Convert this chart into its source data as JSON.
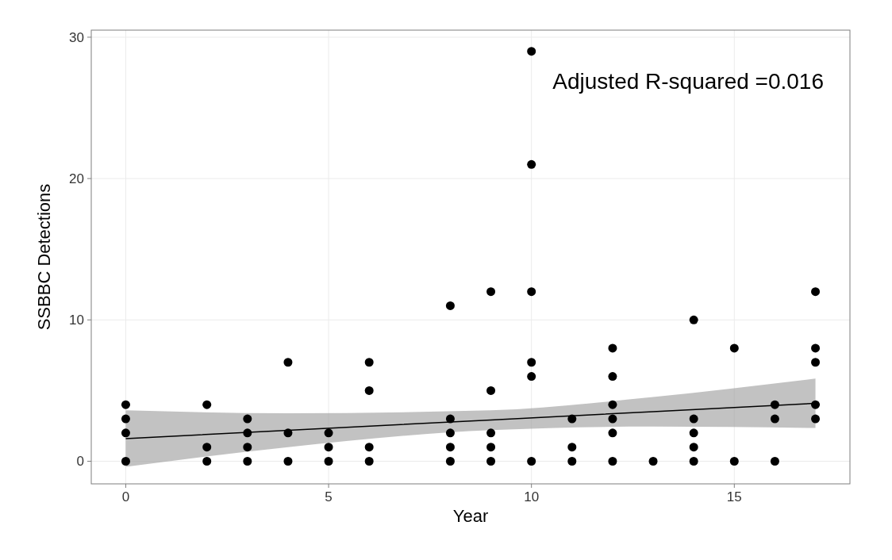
{
  "chart_data": {
    "type": "scatter",
    "xlabel": "Year",
    "ylabel": "SSBBC Detections",
    "annotations": [
      "Adjusted R-squared =0.016"
    ],
    "xlim": [
      -0.85,
      17.85
    ],
    "xticks": [
      0,
      5,
      10,
      15
    ],
    "ylim": [
      -1.6,
      30.5
    ],
    "yticks": [
      0,
      10,
      20,
      30
    ],
    "grid": true,
    "series": [
      {
        "marker": "circle",
        "color": "#000000",
        "x": [
          0,
          0,
          0,
          0,
          2,
          2,
          2,
          3,
          3,
          3,
          3,
          4,
          4,
          4,
          5,
          5,
          5,
          6,
          6,
          6,
          6,
          8,
          8,
          8,
          8,
          8,
          9,
          9,
          9,
          9,
          9,
          10,
          10,
          10,
          10,
          10,
          10,
          11,
          11,
          11,
          12,
          12,
          12,
          12,
          12,
          12,
          13,
          14,
          14,
          14,
          14,
          14,
          15,
          15,
          16,
          16,
          16,
          17,
          17,
          17,
          17,
          17
        ],
        "values": [
          0,
          2,
          3,
          4,
          0,
          1,
          4,
          0,
          1,
          2,
          3,
          0,
          2,
          7,
          0,
          1,
          2,
          0,
          1,
          5,
          7,
          0,
          1,
          2,
          3,
          11,
          0,
          1,
          2,
          5,
          12,
          0,
          6,
          7,
          12,
          21,
          29,
          0,
          1,
          3,
          0,
          2,
          3,
          4,
          6,
          8,
          0,
          0,
          1,
          2,
          3,
          10,
          0,
          8,
          0,
          3,
          4,
          3,
          4,
          7,
          8,
          12
        ]
      },
      {
        "type": "line",
        "marker": "none",
        "color": "#000000",
        "x": [
          0,
          4,
          9,
          13,
          17
        ],
        "values": [
          1.6,
          2.19,
          2.92,
          3.51,
          4.1
        ],
        "lower": [
          -0.4,
          1.0,
          2.2,
          2.45,
          2.35
        ],
        "upper": [
          3.6,
          3.4,
          3.6,
          4.55,
          5.85
        ]
      }
    ]
  }
}
